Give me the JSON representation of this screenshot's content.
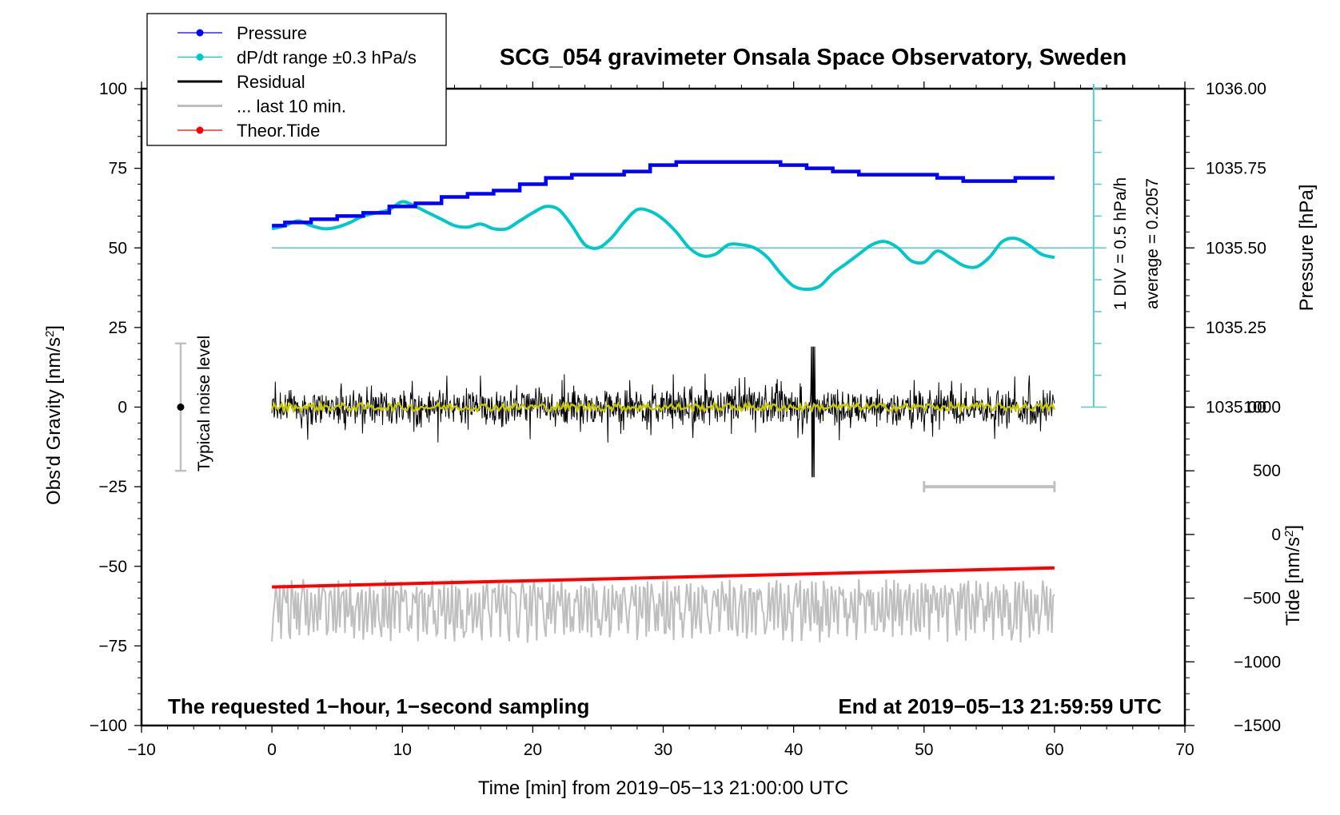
{
  "chart_data": {
    "type": "line",
    "title": "SCG_054 gravimeter Onsala Space Observatory, Sweden",
    "xlabel": "Time [min] from 2019−05−13 21:00:00 UTC",
    "ylabel_left": "Obs'd Gravity [nm/s²]",
    "ylabel_right_pressure": "Pressure [hPa]",
    "ylabel_right_tide": "Tide [nm/s²]",
    "xlim": [
      -10,
      70
    ],
    "ylim": [
      -100,
      100
    ],
    "x_ticks": [
      "−10",
      "0",
      "10",
      "20",
      "30",
      "40",
      "50",
      "60",
      "70"
    ],
    "x_tick_values": [
      -10,
      0,
      10,
      20,
      30,
      40,
      50,
      60,
      70
    ],
    "y_ticks": [
      "100",
      "75",
      "50",
      "25",
      "0",
      "−25",
      "−50",
      "−75",
      "−100"
    ],
    "y_tick_values": [
      100,
      75,
      50,
      25,
      0,
      -25,
      -50,
      -75,
      -100
    ],
    "pressure_ticks": [
      "1036.00",
      "1035.75",
      "1035.50",
      "1035.25",
      "1035.00"
    ],
    "pressure_tick_values": [
      1036.0,
      1035.75,
      1035.5,
      1035.25,
      1035.0
    ],
    "pressure_axis_map": {
      "p_at_gravity_50": 1035.5,
      "gravity_units_per_hpa": 100
    },
    "tide_ticks": [
      "1000",
      "500",
      "0",
      "−500",
      "−1000",
      "−1500"
    ],
    "tide_tick_values": [
      1000,
      500,
      0,
      -500,
      -1000,
      -1500
    ],
    "tide_axis_map": {
      "tide_at_gravity_minus_100": -1500,
      "tide_units_per_gravity_unit": 25
    },
    "grid": false,
    "legend": {
      "position": "top-left",
      "entries": [
        {
          "label": "Pressure",
          "color": "#0000ff",
          "marker": "dot"
        },
        {
          "label": "dP/dt range ±0.3 hPa/s",
          "color": "#00c8c8",
          "marker": "dot"
        },
        {
          "label": "Residual",
          "color": "#000000",
          "marker": "none"
        },
        {
          "label": "... last 10 min.",
          "color": "#bebebe",
          "marker": "none"
        },
        {
          "label": "Theor.Tide",
          "color": "#ff0000",
          "marker": "dot"
        }
      ]
    },
    "series": [
      {
        "name": "Pressure",
        "unit": "hPa",
        "color": "#0000ff",
        "x": [
          0,
          2,
          4,
          6,
          8,
          10,
          12,
          14,
          16,
          18,
          20,
          22,
          24,
          26,
          28,
          30,
          32,
          34,
          36,
          38,
          40,
          42,
          44,
          46,
          48,
          50,
          52,
          54,
          56,
          58,
          60
        ],
        "values": [
          1035.57,
          1035.58,
          1035.59,
          1035.6,
          1035.61,
          1035.63,
          1035.64,
          1035.66,
          1035.67,
          1035.68,
          1035.7,
          1035.72,
          1035.73,
          1035.73,
          1035.74,
          1035.76,
          1035.77,
          1035.77,
          1035.77,
          1035.77,
          1035.76,
          1035.75,
          1035.74,
          1035.73,
          1035.73,
          1035.73,
          1035.72,
          1035.71,
          1035.71,
          1035.72,
          1035.72
        ]
      },
      {
        "name": "dP/dt",
        "unit": "gravity-axis units (50 = zero rate)",
        "color": "#00c8c8",
        "x": [
          0,
          1,
          2,
          3,
          4,
          5,
          6,
          7,
          8,
          9,
          10,
          11,
          12,
          13,
          14,
          15,
          16,
          17,
          18,
          19,
          20,
          21,
          22,
          23,
          24,
          25,
          26,
          27,
          28,
          29,
          30,
          31,
          32,
          33,
          34,
          35,
          36,
          37,
          38,
          39,
          40,
          41,
          42,
          43,
          44,
          45,
          46,
          47,
          48,
          49,
          50,
          51,
          52,
          53,
          54,
          55,
          56,
          57,
          58,
          59,
          60
        ],
        "values": [
          56,
          57,
          58.5,
          57,
          56,
          56.5,
          58,
          60,
          61,
          62,
          64.5,
          63,
          61,
          59,
          57,
          56.5,
          57.5,
          56,
          56,
          58.5,
          61,
          63,
          62,
          57,
          51,
          50,
          53,
          58,
          62,
          61.5,
          59,
          55,
          50,
          47.5,
          48,
          51,
          51,
          50,
          47,
          42,
          38,
          37,
          38,
          42,
          45,
          48,
          51,
          52,
          50,
          46,
          45.5,
          49,
          47,
          44.5,
          44,
          47,
          52,
          53,
          51,
          48,
          47
        ]
      },
      {
        "name": "Residual",
        "unit": "nm/s²",
        "color": "#000000",
        "description": "1-second residual noise around 0, typical amplitude about ±10, max excursion about +19 / −22 near t=41.5 min",
        "amplitude": 10,
        "extremes": {
          "max": 19,
          "min": -22
        }
      },
      {
        "name": "Residual smoothed",
        "unit": "nm/s²",
        "color": "#c8c800",
        "description": "Smoothed residual near 0",
        "values_near": 0
      },
      {
        "name": "Theor.Tide",
        "unit": "nm/s² (gravity axis)",
        "color": "#ff0000",
        "x": [
          0,
          60
        ],
        "values": [
          -56.5,
          -50.5
        ]
      },
      {
        "name": "... last 10 min.",
        "unit": "nm/s² (gravity axis)",
        "color": "#bebebe",
        "description": "Oscillating trace between about −75 and −50, centered near −62",
        "range": [
          -75,
          -50
        ]
      }
    ],
    "annotations": [
      {
        "text": "Typical noise level",
        "range": [
          -20,
          20
        ],
        "center": 0,
        "x": -7
      },
      {
        "text": "1 DIV = 0.5 hPa/h"
      },
      {
        "text": "average = 0.2057"
      },
      {
        "text": "The requested 1−hour, 1−second sampling",
        "position": "bottom-left"
      },
      {
        "text": "End at 2019−05−13 21:59:59 UTC",
        "position": "bottom-right"
      },
      {
        "text": "last 10 min bar",
        "x_range": [
          50,
          60
        ],
        "y": -25
      }
    ],
    "dpdt_scale": {
      "x": 63,
      "y_range": [
        0,
        100
      ],
      "zero_line_y": 50
    }
  },
  "text": {
    "title": "SCG_054 gravimeter Onsala Space Observatory, Sweden",
    "xlabel": "Time [min] from 2019−05−13 21:00:00 UTC",
    "ylabel_left": "Obs'd Gravity [nm/s",
    "ylabel_left_tail": "]",
    "ylabel_pressure": "Pressure [hPa]",
    "ylabel_tide": "Tide [nm/s",
    "ylabel_tide_tail": "]",
    "superscript": "2",
    "noise_label": "Typical noise level",
    "div_label": "1 DIV = 0.5 hPa/h",
    "average_label": "average = 0.2057",
    "note_left": "The requested 1−hour, 1−second sampling",
    "note_right": "End at 2019−05−13 21:59:59 UTC"
  }
}
